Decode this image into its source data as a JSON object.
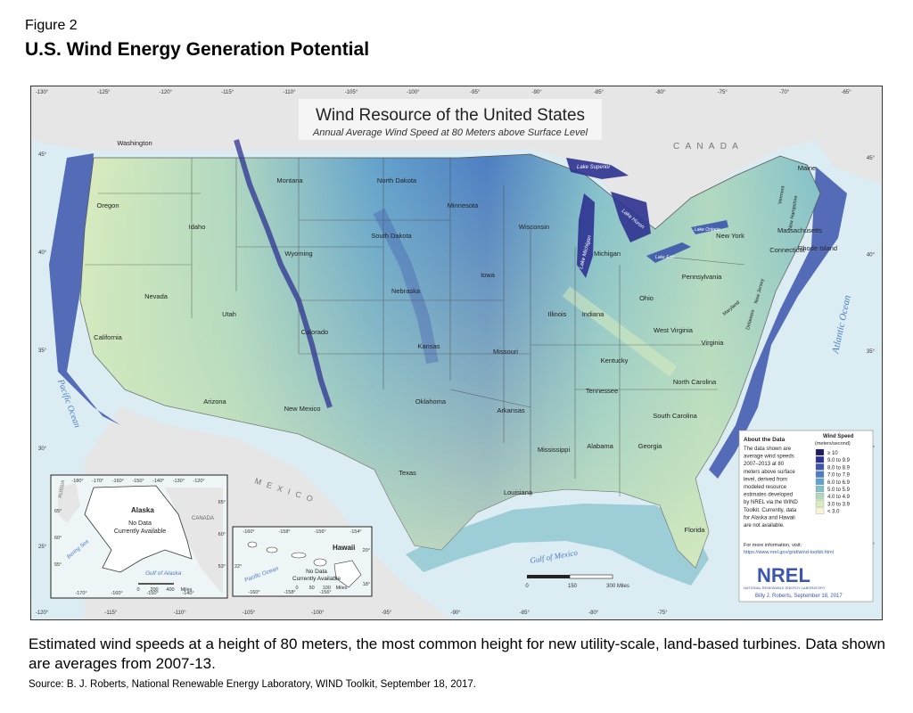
{
  "figure": {
    "label": "Figure 2",
    "title": "U.S. Wind Energy Generation Potential"
  },
  "map": {
    "title": "Wind Resource of the United States",
    "subtitle": "Annual Average Wind Speed at 80 Meters above Surface Level",
    "top_longitudes": [
      "-130°",
      "-125°",
      "-120°",
      "-115°",
      "-110°",
      "-105°",
      "-100°",
      "-95°",
      "-90°",
      "-85°",
      "-80°",
      "-75°",
      "-70°",
      "-65°"
    ],
    "bottom_longitudes": [
      "-120°",
      "-115°",
      "-110°",
      "-105°",
      "-100°",
      "-95°",
      "-90°",
      "-85°",
      "-80°",
      "-75°"
    ],
    "left_latitudes": [
      "45°",
      "40°",
      "35°",
      "30°",
      "25°"
    ],
    "right_latitudes": [
      "45°",
      "40°",
      "35°",
      "30°",
      "25°"
    ],
    "country_labels": {
      "canada": "C A N A D A",
      "mexico": "M E X I C O"
    },
    "water_labels": {
      "pacific": "Pacific Ocean",
      "atlantic": "Atlantic Ocean",
      "gulf": "Gulf of Mexico",
      "lake_superior": "Lake Superior",
      "lake_michigan": "Lake Michigan",
      "lake_huron": "Lake Huron",
      "lake_erie": "Lake Erie",
      "lake_ontario": "Lake Ontario"
    },
    "states": [
      {
        "name": "Washington"
      },
      {
        "name": "Oregon"
      },
      {
        "name": "California"
      },
      {
        "name": "Nevada"
      },
      {
        "name": "Idaho"
      },
      {
        "name": "Montana"
      },
      {
        "name": "Wyoming"
      },
      {
        "name": "Utah"
      },
      {
        "name": "Arizona"
      },
      {
        "name": "Colorado"
      },
      {
        "name": "New Mexico"
      },
      {
        "name": "North Dakota"
      },
      {
        "name": "South Dakota"
      },
      {
        "name": "Nebraska"
      },
      {
        "name": "Kansas"
      },
      {
        "name": "Oklahoma"
      },
      {
        "name": "Texas"
      },
      {
        "name": "Minnesota"
      },
      {
        "name": "Iowa"
      },
      {
        "name": "Missouri"
      },
      {
        "name": "Arkansas"
      },
      {
        "name": "Louisiana"
      },
      {
        "name": "Wisconsin"
      },
      {
        "name": "Illinois"
      },
      {
        "name": "Michigan"
      },
      {
        "name": "Indiana"
      },
      {
        "name": "Ohio"
      },
      {
        "name": "Kentucky"
      },
      {
        "name": "Tennessee"
      },
      {
        "name": "Mississippi"
      },
      {
        "name": "Alabama"
      },
      {
        "name": "Georgia"
      },
      {
        "name": "Florida"
      },
      {
        "name": "South Carolina"
      },
      {
        "name": "North Carolina"
      },
      {
        "name": "Virginia"
      },
      {
        "name": "West Virginia"
      },
      {
        "name": "Pennsylvania"
      },
      {
        "name": "New York"
      },
      {
        "name": "Maine"
      },
      {
        "name": "Vermont"
      },
      {
        "name": "New Hampshire"
      },
      {
        "name": "Massachusetts"
      },
      {
        "name": "Connecticut"
      },
      {
        "name": "Rhode Island"
      },
      {
        "name": "New Jersey"
      },
      {
        "name": "Delaware"
      },
      {
        "name": "Maryland"
      }
    ],
    "alaska_inset": {
      "title": "Alaska",
      "note_line1": "No Data",
      "note_line2": "Currently Available",
      "region_labels": {
        "russia": "RUSSIA",
        "canada": "CANADA",
        "bering": "Bering Sea",
        "gulf": "Gulf of Alaska"
      },
      "top_ticks": [
        "-180°",
        "-170°",
        "-160°",
        "-150°",
        "-140°",
        "-130°",
        "-120°"
      ],
      "bottom_ticks": [
        "-170°",
        "-160°",
        "-150°",
        "-140°"
      ],
      "left_ticks": [
        "65°",
        "60°",
        "55°"
      ],
      "right_ticks": [
        "65°",
        "60°",
        "53°"
      ],
      "scale_ticks": [
        "0",
        "200",
        "400",
        "Miles"
      ]
    },
    "hawaii_inset": {
      "title": "Hawaii",
      "note_line1": "No Data",
      "note_line2": "Currently Available",
      "ocean": "Pacific Ocean",
      "top_ticks": [
        "-160°",
        "-158°",
        "-156°",
        "-154°"
      ],
      "bottom_ticks": [
        "-160°",
        "-158°",
        "-156°"
      ],
      "left_ticks": [
        "22°"
      ],
      "right_ticks": [
        "20°",
        "18°"
      ],
      "scale_ticks": [
        "0",
        "50",
        "100",
        "Miles"
      ]
    },
    "scale_bar": [
      "0",
      "150",
      "300 Miles"
    ],
    "about": {
      "heading": "About the Data",
      "lines": [
        "The data shown are",
        "average wind speeds",
        "2007–2013 at 80",
        "meters above surface",
        "level, derived from",
        "modeled resource",
        "estimates developed",
        "by NREL via the WIND",
        "Toolkit. Currently, data",
        "for Alaska and Hawaii",
        "are not available."
      ],
      "more_info": "For more information, visit:",
      "url": "https://www.nrel.gov/grid/wind-toolkit.html"
    },
    "legend": {
      "title_line1": "Wind Speed",
      "title_line2": "(meters/second)",
      "items": [
        {
          "label": "≥ 10",
          "color": "#1f1c5e"
        },
        {
          "label": "9.0 to 9.9",
          "color": "#2e3290"
        },
        {
          "label": "8.0 to 8.9",
          "color": "#3c55ad"
        },
        {
          "label": "7.0 to 7.9",
          "color": "#4e7ec2"
        },
        {
          "label": "6.0 to 6.9",
          "color": "#63a2cc"
        },
        {
          "label": "5.0 to 5.9",
          "color": "#83c0cb"
        },
        {
          "label": "4.0 to 4.9",
          "color": "#b2d9c0"
        },
        {
          "label": "3.0 to 3.9",
          "color": "#dcedbd"
        },
        {
          "label": "< 3.0",
          "color": "#f6f6d6"
        }
      ]
    },
    "nrel": {
      "logo": "NREL",
      "lab": "NATIONAL RENEWABLE ENERGY LABORATORY",
      "author": "Billy J. Roberts, September 18, 2017"
    }
  },
  "caption": "Estimated wind speeds at a height of 80 meters, the most common height for new utility-scale, land-based turbines. Data shown are averages from 2007-13.",
  "source": "Source: B. J. Roberts, National Renewable Energy Laboratory, WIND Toolkit, September 18, 2017."
}
